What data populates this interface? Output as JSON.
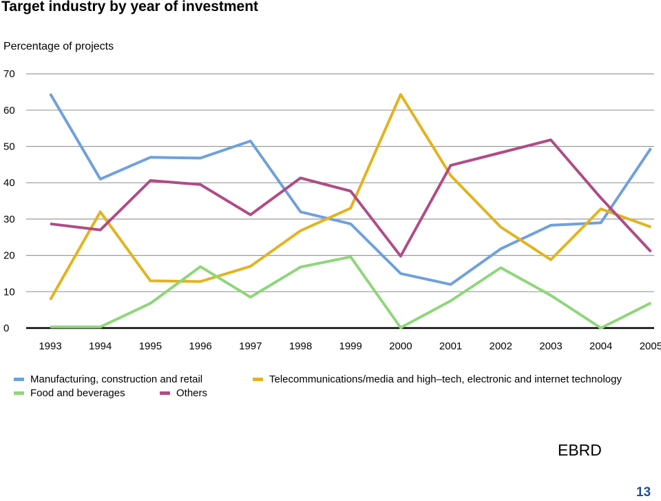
{
  "page": {
    "title": "Target industry by year of investment",
    "source": "EBRD",
    "page_number": "13"
  },
  "chart_data": {
    "type": "line",
    "title": "Target industry by year of investment",
    "ylabel": "Percentage of projects",
    "xlabel": "",
    "ylim": [
      0,
      70
    ],
    "yticks": [
      0,
      10,
      20,
      30,
      40,
      50,
      60,
      70
    ],
    "grid": true,
    "legend_position": "bottom",
    "categories": [
      "1993",
      "1994",
      "1995",
      "1996",
      "1997",
      "1998",
      "1999",
      "2000",
      "2001",
      "2002",
      "2003",
      "2004",
      "2005"
    ],
    "series": [
      {
        "name": "Manufacturing, construction and retail",
        "color": "#6fa0dc",
        "values": [
          64.5,
          41,
          47,
          46.8,
          51.5,
          32,
          28.7,
          15,
          12,
          21.8,
          28.3,
          29,
          49.5
        ]
      },
      {
        "name": "Telecommunications/media and high–tech, electronic and internet technology",
        "color": "#e3b31e",
        "values": [
          7.8,
          32,
          13,
          12.8,
          17,
          26.8,
          33,
          64.3,
          42,
          27.8,
          18.8,
          32.8,
          27.8
        ]
      },
      {
        "name": "Food and beverages",
        "color": "#8fd67a",
        "values": [
          0.3,
          0.3,
          6.8,
          16.9,
          8.5,
          16.8,
          19.6,
          0.1,
          7.5,
          16.6,
          9,
          0,
          6.9
        ]
      },
      {
        "name": "Others",
        "color": "#b04b87",
        "values": [
          28.7,
          27,
          40.6,
          39.5,
          31.2,
          41.3,
          37.7,
          19.8,
          44.8,
          48.3,
          51.8,
          35.8,
          21
        ]
      }
    ]
  }
}
